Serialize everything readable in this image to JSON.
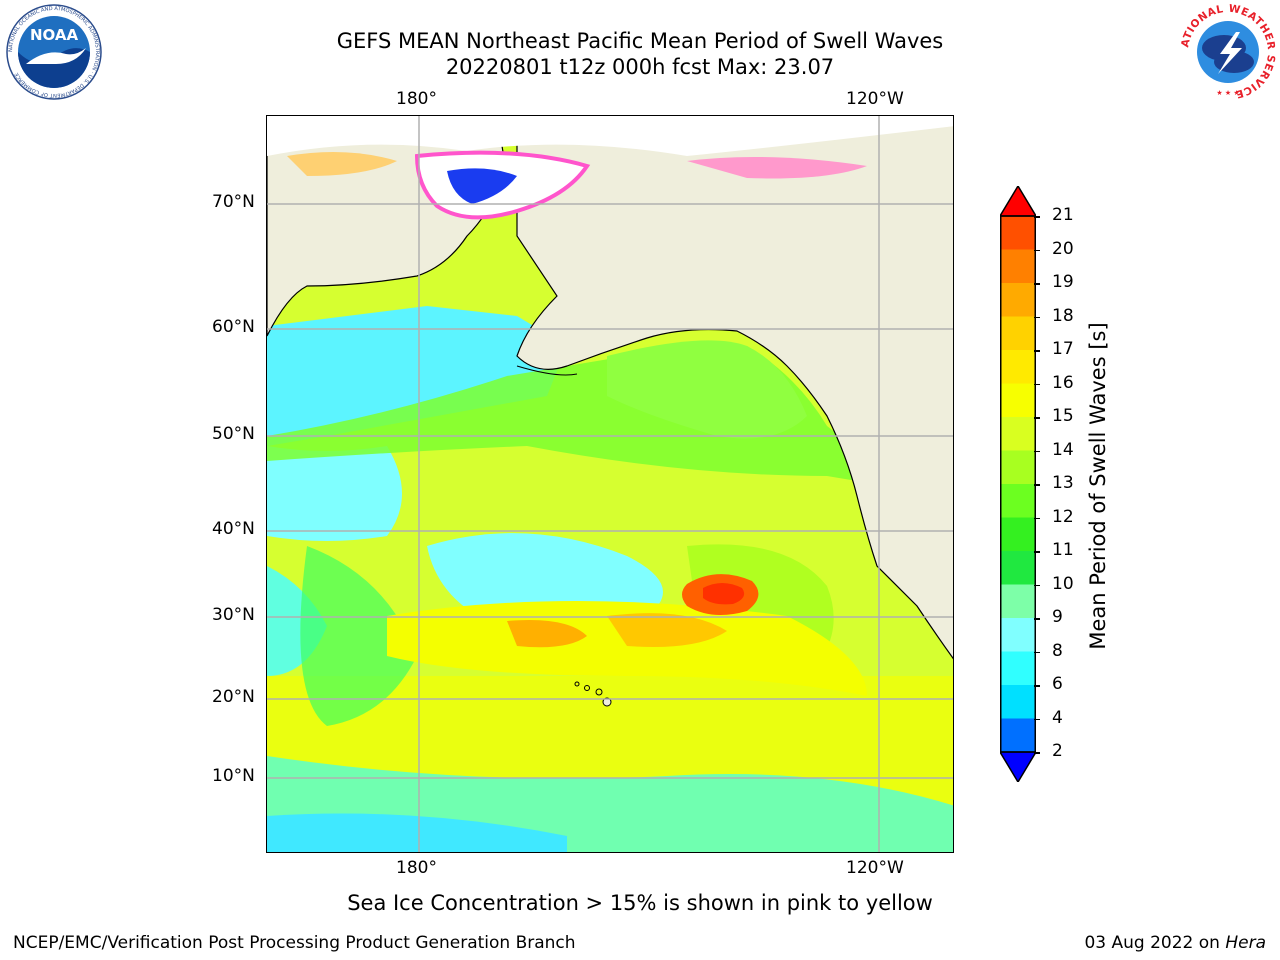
{
  "title_line1": "GEFS MEAN Northeast Pacific Mean Period of Swell Waves",
  "title_line2": "20220801 t12z 000h fcst   Max: 23.07",
  "logos": {
    "left_name": "NOAA",
    "left_ring": "NATIONAL OCEANIC AND ATMOSPHERIC ADMINISTRATION · U.S. DEPARTMENT OF COMMERCE",
    "right_ring": "NATIONAL WEATHER SERVICE"
  },
  "map": {
    "top_lon_labels": [
      "180°",
      "120°W"
    ],
    "bottom_lon_labels": [
      "180°",
      "120°W"
    ],
    "lat_labels": [
      "70°N",
      "60°N",
      "50°N",
      "40°N",
      "30°N",
      "20°N",
      "10°N"
    ],
    "colors": {
      "land": "#efeedc",
      "ice": "#ffffff",
      "grid": "#b0b0b0"
    }
  },
  "colorbar": {
    "title": "Mean Period of Swell Waves [s]",
    "ticks": [
      "21",
      "20",
      "19",
      "18",
      "17",
      "16",
      "15",
      "14",
      "13",
      "12",
      "11",
      "10",
      "9",
      "8",
      "6",
      "4",
      "2"
    ],
    "colors": [
      "#ff2000",
      "#ff5000",
      "#ff8000",
      "#ffaa00",
      "#ffd200",
      "#ffea00",
      "#f7ff00",
      "#d9ff20",
      "#a8ff20",
      "#6cff20",
      "#34f020",
      "#20e840",
      "#7dffa8",
      "#80ffff",
      "#30ffff",
      "#00e0ff",
      "#0070ff"
    ],
    "over_color": "#ff0000",
    "under_color": "#0000ff"
  },
  "note": "Sea Ice Concentration > 15% is shown in pink to yellow",
  "footer_left": "NCEP/EMC/Verification Post Processing Product Generation Branch",
  "footer_right_prefix": "03 Aug 2022 on",
  "footer_right_system": "Hera"
}
